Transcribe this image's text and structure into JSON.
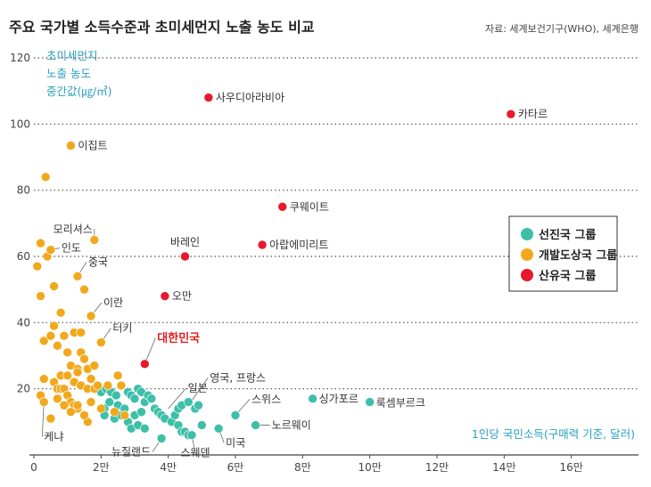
{
  "title": "주요 국가별 소득수준과 초미세먼지 노출 농도 비교",
  "source": "자료: 세계보건기구(WHO), 세계은행",
  "chart_data": {
    "type": "scatter",
    "ylabel_lines": [
      "초미세먼지",
      "노출 농도",
      "중간값(㎍/㎥)"
    ],
    "xlabel": "1인당 국민소득(구매력 기준, 달러)",
    "xlim": [
      0,
      180000
    ],
    "ylim": [
      0,
      120
    ],
    "x_ticks": [
      {
        "value": 0,
        "label": "0"
      },
      {
        "value": 20000,
        "label": "2만"
      },
      {
        "value": 40000,
        "label": "4만"
      },
      {
        "value": 60000,
        "label": "6만"
      },
      {
        "value": 80000,
        "label": "8만"
      },
      {
        "value": 100000,
        "label": "10만"
      },
      {
        "value": 120000,
        "label": "12만"
      },
      {
        "value": 140000,
        "label": "14만"
      },
      {
        "value": 160000,
        "label": "16만"
      }
    ],
    "y_ticks": [
      20,
      40,
      60,
      80,
      100,
      120
    ],
    "grid": "horizontal-dotted",
    "legend_position": "right",
    "series": [
      {
        "name": "선진국 그룹",
        "color": "#3dbfa8",
        "points": [
          [
            20000,
            19
          ],
          [
            21500,
            20
          ],
          [
            23000,
            19
          ],
          [
            24500,
            18
          ],
          [
            21000,
            14
          ],
          [
            22500,
            16
          ],
          [
            21000,
            12
          ],
          [
            24000,
            11
          ],
          [
            26000,
            12
          ],
          [
            25000,
            15
          ],
          [
            27000,
            14
          ],
          [
            28000,
            19
          ],
          [
            29000,
            18
          ],
          [
            30000,
            17
          ],
          [
            31000,
            20
          ],
          [
            32000,
            19
          ],
          [
            33000,
            16
          ],
          [
            34000,
            18
          ],
          [
            35000,
            17
          ],
          [
            28000,
            10
          ],
          [
            30000,
            12
          ],
          [
            32000,
            13
          ],
          [
            29000,
            8
          ],
          [
            31000,
            9
          ],
          [
            33000,
            8
          ],
          [
            36000,
            14
          ],
          [
            37000,
            13
          ],
          [
            38000,
            12
          ],
          [
            39000,
            11
          ],
          [
            41000,
            10
          ],
          [
            42000,
            12
          ],
          [
            43000,
            9
          ],
          [
            44000,
            7
          ],
          [
            45000,
            7
          ],
          [
            46000,
            6
          ],
          [
            47000,
            6
          ],
          [
            43000,
            14
          ],
          [
            44000,
            15
          ],
          [
            46000,
            16
          ],
          [
            48000,
            14
          ],
          [
            49000,
            15
          ],
          [
            50000,
            9
          ],
          [
            38000,
            5
          ],
          [
            55000,
            8
          ],
          [
            60000,
            12
          ],
          [
            66000,
            9
          ],
          [
            83000,
            17
          ],
          [
            100000,
            16
          ]
        ]
      },
      {
        "name": "개발도상국 그룹",
        "color": "#f2a81c",
        "points": [
          [
            11000,
            93.5
          ],
          [
            3500,
            84
          ],
          [
            1000,
            57
          ],
          [
            2000,
            64
          ],
          [
            4000,
            60
          ],
          [
            5000,
            62
          ],
          [
            18000,
            65
          ],
          [
            13000,
            54
          ],
          [
            15000,
            50
          ],
          [
            6000,
            51
          ],
          [
            2000,
            48
          ],
          [
            17000,
            42
          ],
          [
            8000,
            43
          ],
          [
            6000,
            39
          ],
          [
            20000,
            34
          ],
          [
            3000,
            34.5
          ],
          [
            5000,
            36
          ],
          [
            9000,
            36
          ],
          [
            12000,
            37
          ],
          [
            14000,
            37
          ],
          [
            7000,
            33
          ],
          [
            10000,
            31
          ],
          [
            14000,
            31
          ],
          [
            16000,
            26
          ],
          [
            15000,
            29
          ],
          [
            18000,
            27
          ],
          [
            11000,
            27
          ],
          [
            13000,
            26
          ],
          [
            17000,
            23
          ],
          [
            8000,
            24
          ],
          [
            10000,
            24
          ],
          [
            12000,
            22
          ],
          [
            13000,
            25
          ],
          [
            14000,
            21
          ],
          [
            16000,
            20
          ],
          [
            18000,
            20
          ],
          [
            19000,
            21
          ],
          [
            22000,
            21
          ],
          [
            25000,
            24
          ],
          [
            26000,
            21
          ],
          [
            6000,
            22
          ],
          [
            7000,
            20
          ],
          [
            8000,
            20
          ],
          [
            9000,
            20
          ],
          [
            10000,
            18
          ],
          [
            11000,
            16
          ],
          [
            12000,
            15
          ],
          [
            13000,
            14
          ],
          [
            2000,
            18
          ],
          [
            3000,
            16
          ],
          [
            3000,
            23
          ],
          [
            7000,
            17
          ],
          [
            9000,
            15
          ],
          [
            11000,
            13
          ],
          [
            13000,
            15
          ],
          [
            16000,
            10
          ],
          [
            15000,
            12
          ],
          [
            17000,
            16
          ],
          [
            20000,
            14
          ],
          [
            24000,
            13
          ],
          [
            27000,
            12
          ],
          [
            5000,
            11
          ]
        ]
      },
      {
        "name": "산유국 그룹",
        "color": "#e8192c",
        "points": [
          [
            52000,
            108
          ],
          [
            142000,
            103
          ],
          [
            74000,
            75
          ],
          [
            68000,
            63.5
          ],
          [
            45000,
            60
          ],
          [
            39000,
            48
          ],
          [
            33000,
            27.5
          ]
        ]
      }
    ],
    "annotations": [
      {
        "text": "사우디아라비아",
        "x": 52000,
        "y": 108
      },
      {
        "text": "카타르",
        "x": 142000,
        "y": 103
      },
      {
        "text": "이집트",
        "x": 11000,
        "y": 93.5
      },
      {
        "text": "쿠웨이트",
        "x": 74000,
        "y": 75
      },
      {
        "text": "모리셔스",
        "x": 18000,
        "y": 65
      },
      {
        "text": "바레인",
        "x": 45000,
        "y": 60
      },
      {
        "text": "아랍에미리트",
        "x": 68000,
        "y": 63.5
      },
      {
        "text": "인도",
        "x": 5000,
        "y": 62
      },
      {
        "text": "중국",
        "x": 13000,
        "y": 54
      },
      {
        "text": "오만",
        "x": 39000,
        "y": 48
      },
      {
        "text": "이란",
        "x": 17000,
        "y": 42
      },
      {
        "text": "터키",
        "x": 20000,
        "y": 34
      },
      {
        "text": "대한민국",
        "x": 33000,
        "y": 27.5
      },
      {
        "text": "일본",
        "x": 40000,
        "y": 14
      },
      {
        "text": "영국, 프랑스",
        "x": 46000,
        "y": 15
      },
      {
        "text": "싱가포르",
        "x": 83000,
        "y": 17
      },
      {
        "text": "룩셈부르크",
        "x": 100000,
        "y": 16
      },
      {
        "text": "스위스",
        "x": 60000,
        "y": 12
      },
      {
        "text": "노르웨이",
        "x": 66000,
        "y": 9
      },
      {
        "text": "케냐",
        "x": 3000,
        "y": 16
      },
      {
        "text": "뉴질랜드",
        "x": 38000,
        "y": 5
      },
      {
        "text": "스웨덴",
        "x": 47000,
        "y": 6
      },
      {
        "text": "미국",
        "x": 55000,
        "y": 8
      }
    ]
  }
}
